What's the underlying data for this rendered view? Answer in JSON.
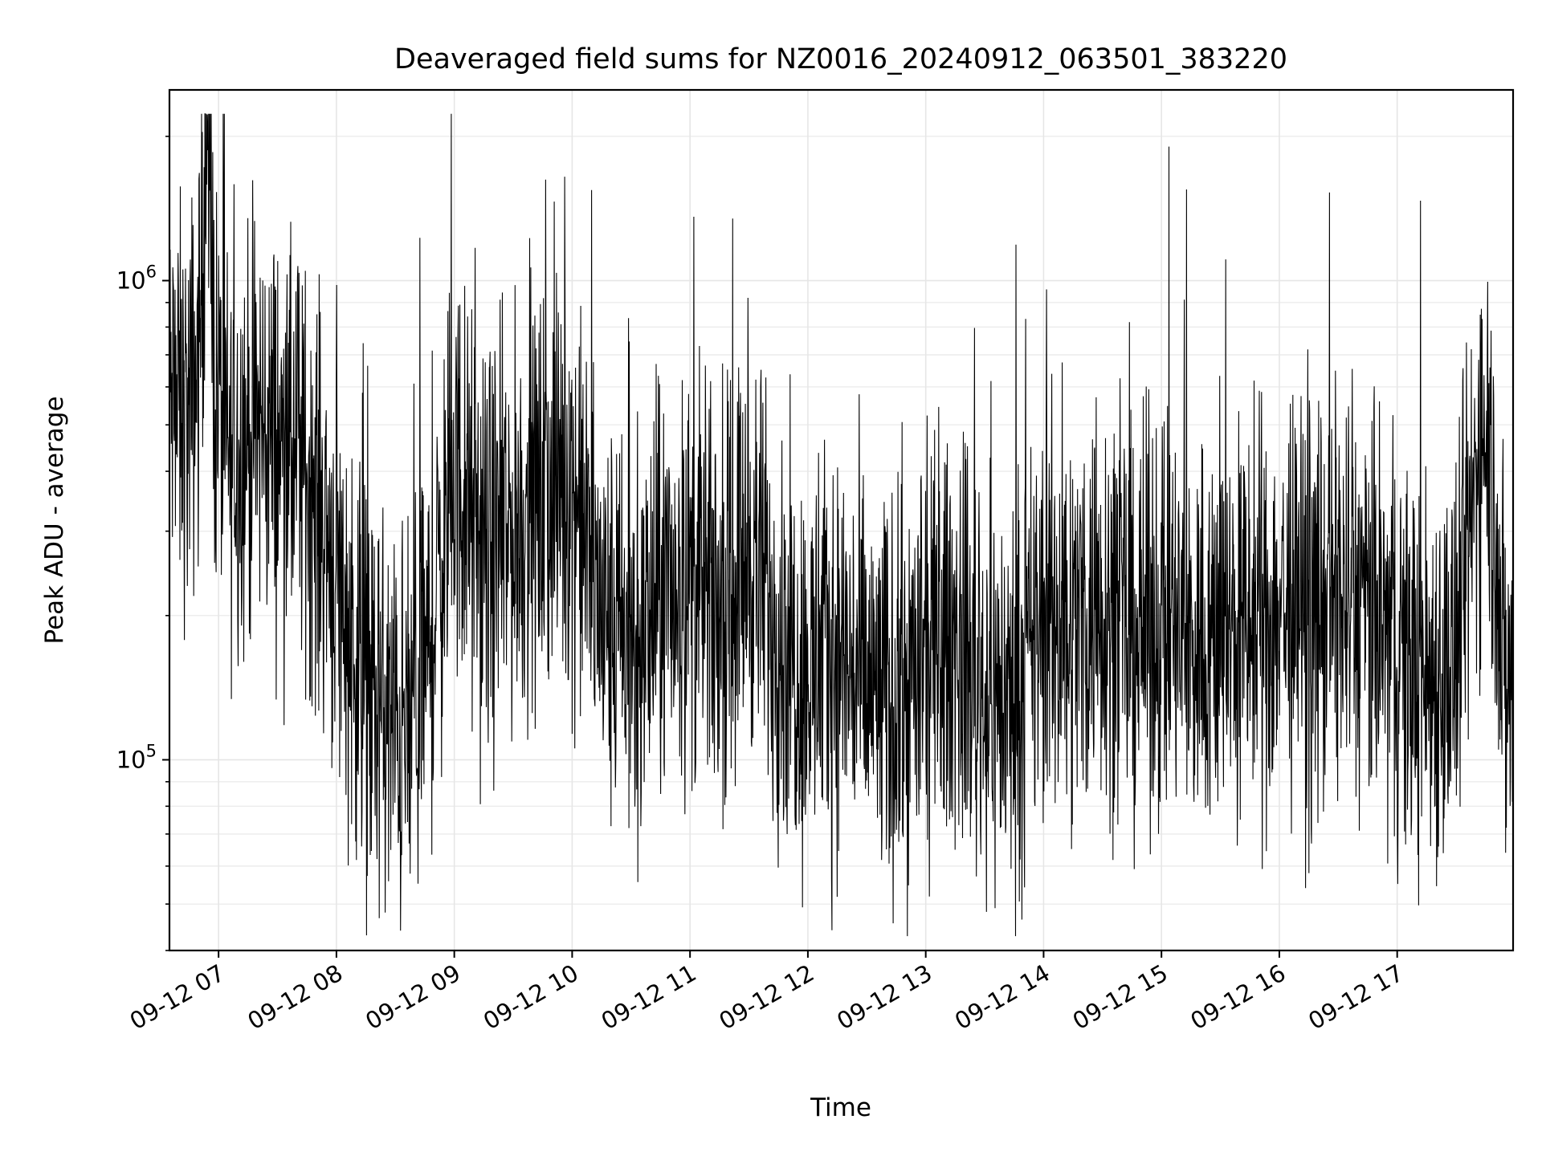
{
  "chart_data": {
    "type": "line",
    "title": "Deaveraged field sums for NZ0016_20240912_063501_383220",
    "xlabel": "Time",
    "ylabel": "Peak ADU - average",
    "yscale": "log",
    "ylim": [
      40000,
      2500000
    ],
    "xlim": [
      "09-12 06:35",
      "09-12 17:59"
    ],
    "grid": true,
    "line_color": "#000000",
    "x_ticks": [
      "09-12 07",
      "09-12 08",
      "09-12 09",
      "09-12 10",
      "09-12 11",
      "09-12 12",
      "09-12 13",
      "09-12 14",
      "09-12 15",
      "09-12 16",
      "09-12 17"
    ],
    "y_ticks": [
      {
        "base": "10",
        "exp": "5",
        "value": 100000
      },
      {
        "base": "10",
        "exp": "6",
        "value": 1000000
      }
    ],
    "series": [
      {
        "x": [
          "09-12 06:35",
          "09-12 06:45",
          "09-12 06:50",
          "09-12 06:54",
          "09-12 06:58",
          "09-12 07:05",
          "09-12 07:15",
          "09-12 07:25",
          "09-12 07:35",
          "09-12 07:45",
          "09-12 07:55",
          "09-12 08:05",
          "09-12 08:15",
          "09-12 08:25",
          "09-12 08:35",
          "09-12 08:45",
          "09-12 09:00",
          "09-12 09:15",
          "09-12 09:30",
          "09-12 09:45",
          "09-12 10:00",
          "09-12 10:15",
          "09-12 10:30",
          "09-12 10:45",
          "09-12 11:00",
          "09-12 11:15",
          "09-12 11:30",
          "09-12 11:45",
          "09-12 12:00",
          "09-12 12:15",
          "09-12 12:30",
          "09-12 12:45",
          "09-12 13:00",
          "09-12 13:15",
          "09-12 13:30",
          "09-12 13:45",
          "09-12 14:00",
          "09-12 14:15",
          "09-12 14:30",
          "09-12 14:45",
          "09-12 15:00",
          "09-12 15:15",
          "09-12 15:30",
          "09-12 15:45",
          "09-12 16:00",
          "09-12 16:15",
          "09-12 16:30",
          "09-12 16:45",
          "09-12 17:00",
          "09-12 17:15",
          "09-12 17:30",
          "09-12 17:45",
          "09-12 17:55"
        ],
        "y": [
          550000,
          520000,
          700000,
          2100000,
          650000,
          420000,
          480000,
          500000,
          430000,
          400000,
          300000,
          200000,
          140000,
          120000,
          110000,
          150000,
          400000,
          260000,
          300000,
          350000,
          380000,
          200000,
          160000,
          220000,
          240000,
          200000,
          280000,
          190000,
          150000,
          170000,
          140000,
          130000,
          160000,
          180000,
          140000,
          130000,
          200000,
          190000,
          220000,
          180000,
          200000,
          170000,
          190000,
          180000,
          210000,
          190000,
          220000,
          200000,
          170000,
          150000,
          160000,
          600000,
          140000
        ]
      }
    ]
  }
}
